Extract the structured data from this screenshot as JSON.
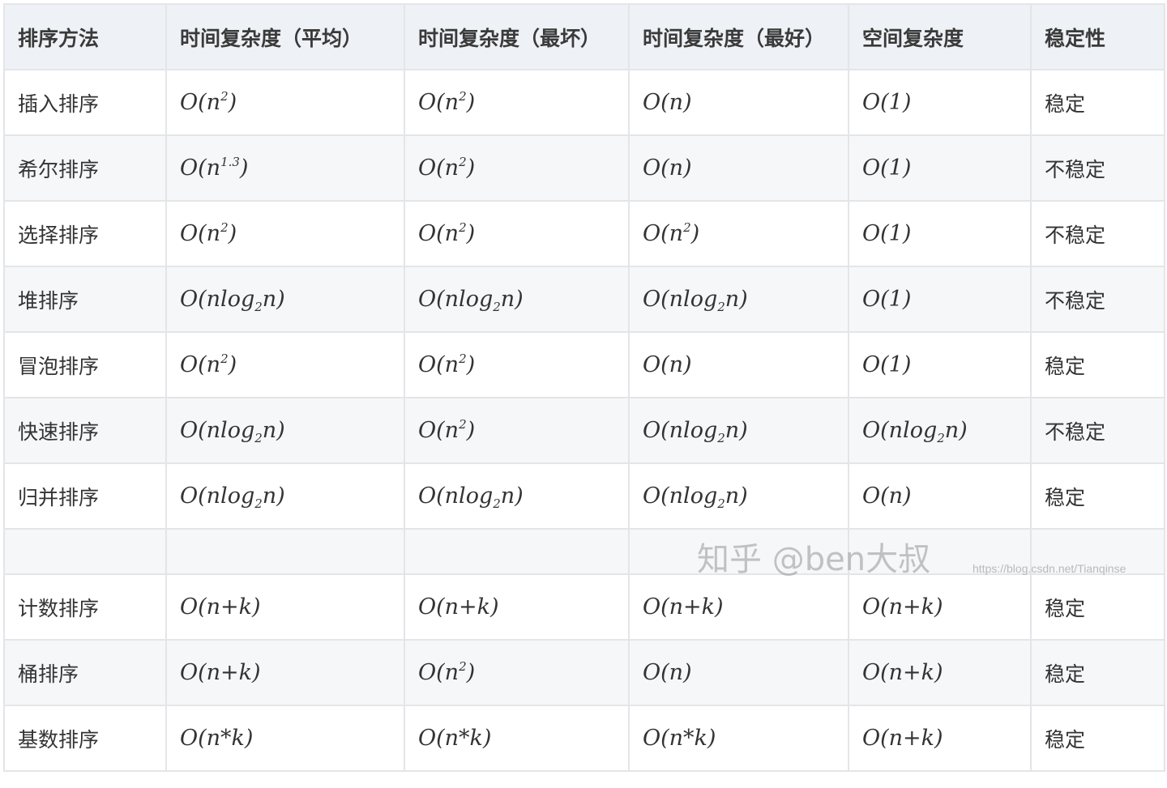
{
  "headers": [
    "排序方法",
    "时间复杂度（平均）",
    "时间复杂度（最坏）",
    "时间复杂度（最好）",
    "空间复杂度",
    "稳定性"
  ],
  "rows": [
    {
      "name": "插入排序",
      "cells": [
        {
          "pre": "O(n",
          "sup": "2",
          "post": ")"
        },
        {
          "pre": "O(n",
          "sup": "2",
          "post": ")"
        },
        {
          "pre": "O(n)"
        },
        {
          "pre": "O(1)"
        }
      ],
      "stability": "稳定"
    },
    {
      "name": "希尔排序",
      "cells": [
        {
          "pre": "O(n",
          "sup": "1.3",
          "post": ")"
        },
        {
          "pre": "O(n",
          "sup": "2",
          "post": ")"
        },
        {
          "pre": "O(n)"
        },
        {
          "pre": "O(1)"
        }
      ],
      "stability": "不稳定"
    },
    {
      "name": "选择排序",
      "cells": [
        {
          "pre": "O(n",
          "sup": "2",
          "post": ")"
        },
        {
          "pre": "O(n",
          "sup": "2",
          "post": ")"
        },
        {
          "pre": "O(n",
          "sup": "2",
          "post": ")"
        },
        {
          "pre": "O(1)"
        }
      ],
      "stability": "不稳定"
    },
    {
      "name": "堆排序",
      "cells": [
        {
          "pre": "O(nlog",
          "sub": "2",
          "post": "n)"
        },
        {
          "pre": "O(nlog",
          "sub": "2",
          "post": "n)"
        },
        {
          "pre": "O(nlog",
          "sub": "2",
          "post": "n)"
        },
        {
          "pre": "O(1)"
        }
      ],
      "stability": "不稳定"
    },
    {
      "name": "冒泡排序",
      "cells": [
        {
          "pre": "O(n",
          "sup": "2",
          "post": ")"
        },
        {
          "pre": "O(n",
          "sup": "2",
          "post": ")"
        },
        {
          "pre": "O(n)"
        },
        {
          "pre": "O(1)"
        }
      ],
      "stability": "稳定"
    },
    {
      "name": "快速排序",
      "cells": [
        {
          "pre": "O(nlog",
          "sub": "2",
          "post": "n)"
        },
        {
          "pre": "O(n",
          "sup": "2",
          "post": ")"
        },
        {
          "pre": "O(nlog",
          "sub": "2",
          "post": "n)"
        },
        {
          "pre": "O(nlog",
          "sub": "2",
          "post": "n)"
        }
      ],
      "stability": "不稳定"
    },
    {
      "name": "归并排序",
      "cells": [
        {
          "pre": "O(nlog",
          "sub": "2",
          "post": "n)"
        },
        {
          "pre": "O(nlog",
          "sub": "2",
          "post": "n)"
        },
        {
          "pre": "O(nlog",
          "sub": "2",
          "post": "n)"
        },
        {
          "pre": "O(n)"
        }
      ],
      "stability": "稳定"
    },
    null,
    {
      "name": "计数排序",
      "cells": [
        {
          "pre": "O(n+k)"
        },
        {
          "pre": "O(n+k)"
        },
        {
          "pre": "O(n+k)"
        },
        {
          "pre": "O(n+k)"
        }
      ],
      "stability": "稳定"
    },
    {
      "name": "桶排序",
      "cells": [
        {
          "pre": "O(n+k)"
        },
        {
          "pre": "O(n",
          "sup": "2",
          "post": ")"
        },
        {
          "pre": "O(n)"
        },
        {
          "pre": "O(n+k)"
        }
      ],
      "stability": "稳定"
    },
    {
      "name": "基数排序",
      "cells": [
        {
          "pre": "O(n*k)"
        },
        {
          "pre": "O(n*k)"
        },
        {
          "pre": "O(n*k)"
        },
        {
          "pre": "O(n+k)"
        }
      ],
      "stability": "稳定"
    }
  ],
  "watermark": {
    "zhihu": "知乎 @ben大叔",
    "csdn": "https://blog.csdn.net/Tianqinse"
  }
}
